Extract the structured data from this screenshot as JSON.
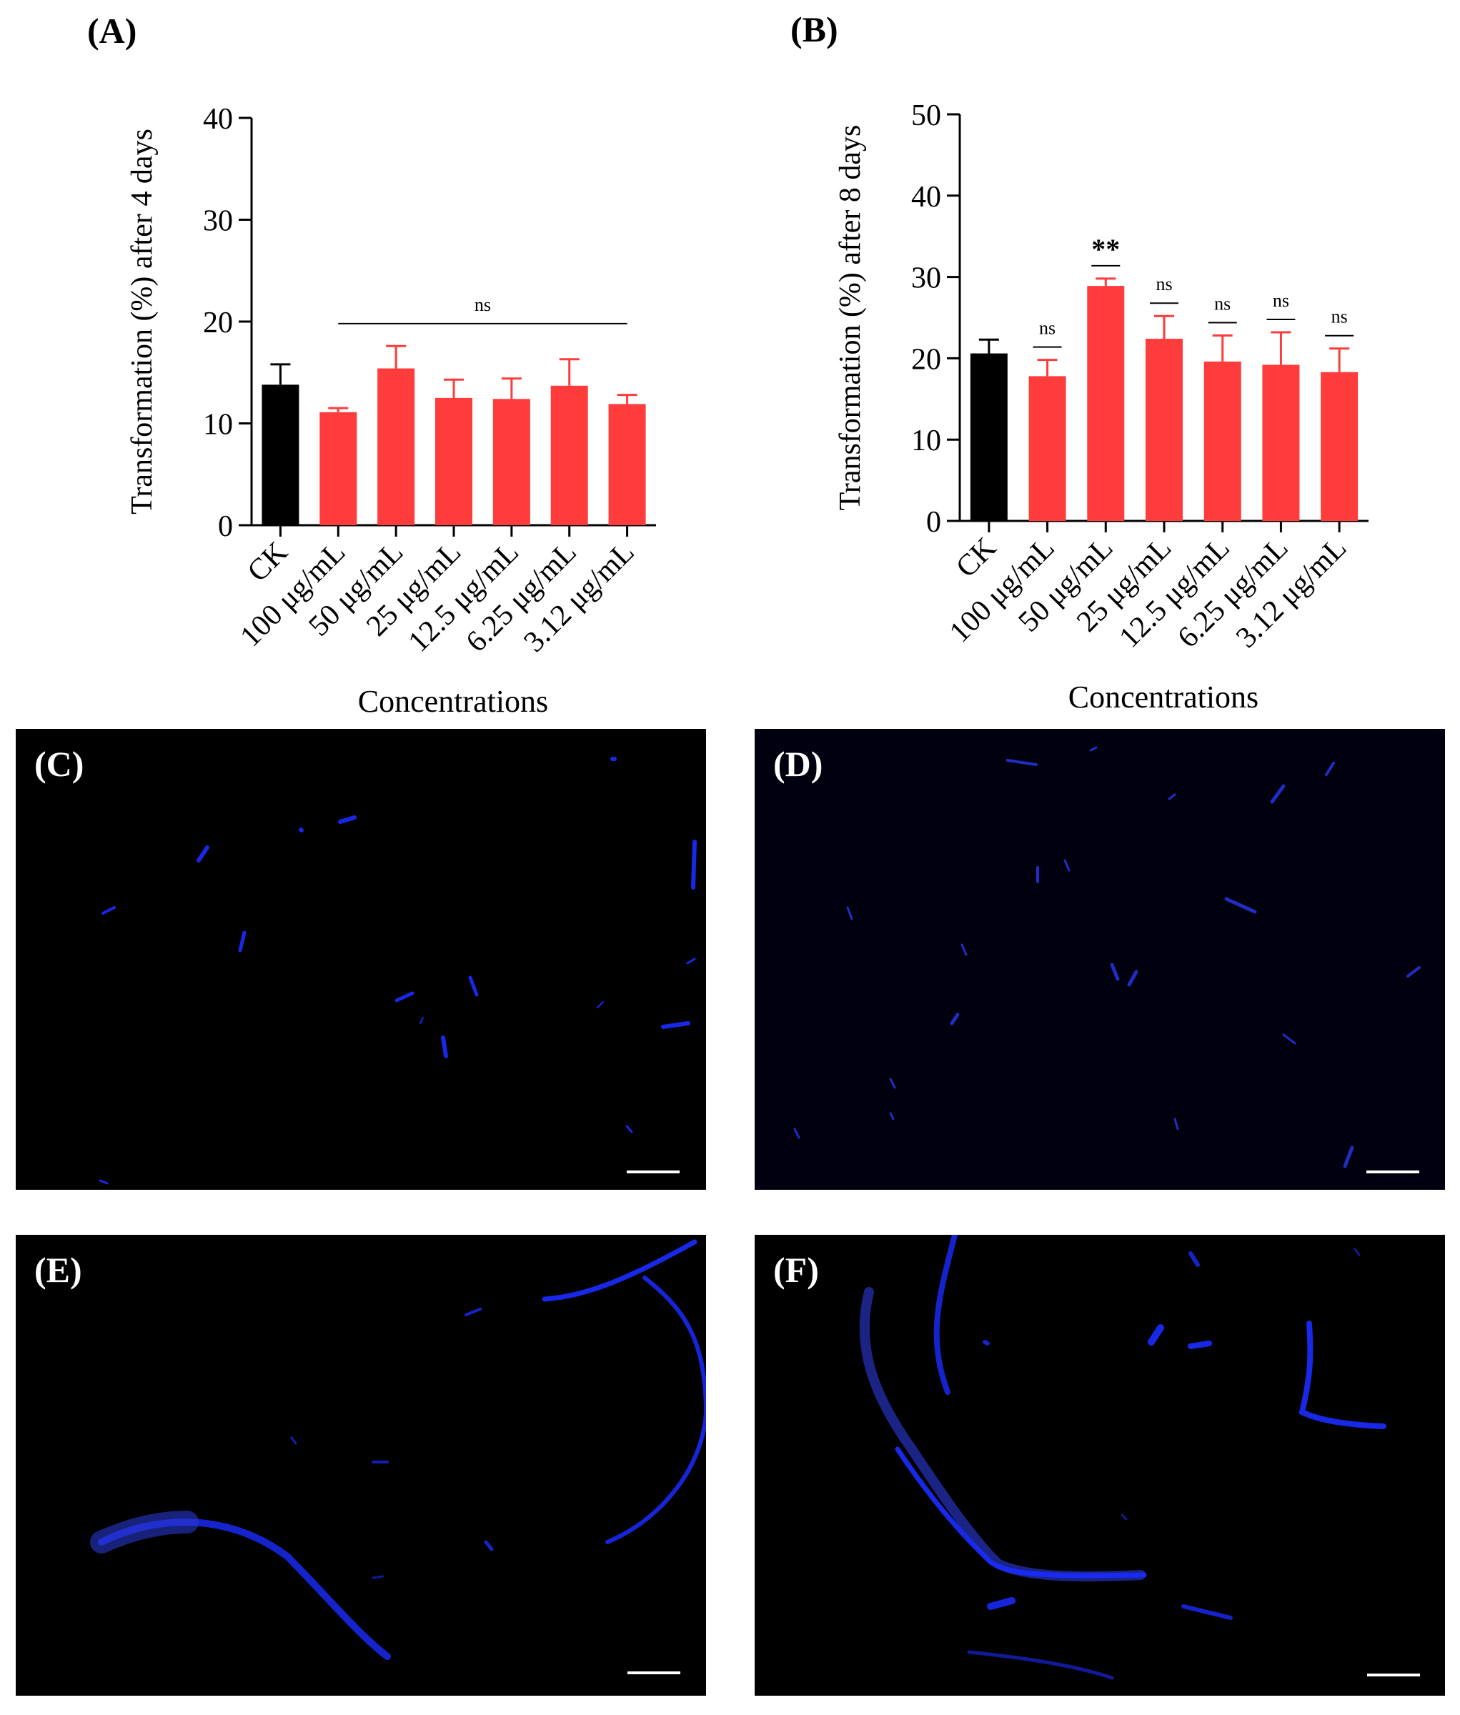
{
  "panels": {
    "a": "(A)",
    "b": "(B)",
    "c": "(C)",
    "d": "(D)",
    "e": "(E)",
    "f": "(F)"
  },
  "colors": {
    "control": "#000000",
    "treatment": "#ff3c3c",
    "micro_bg": "#000000",
    "fluor": "#1a1aff"
  },
  "chart_data": [
    {
      "type": "bar",
      "panel": "(A)",
      "categories": [
        "CK",
        "100 μg/mL",
        "50 μg/mL",
        "25 μg/mL",
        "12.5 μg/mL",
        "6.25 μg/mL",
        "3.12 μg/mL"
      ],
      "values": [
        13.8,
        11.1,
        15.4,
        12.5,
        12.4,
        13.7,
        11.9
      ],
      "errors": [
        2.0,
        0.4,
        2.2,
        1.8,
        2.0,
        2.6,
        0.9
      ],
      "colors": [
        "#000000",
        "#ff3c3c",
        "#ff3c3c",
        "#ff3c3c",
        "#ff3c3c",
        "#ff3c3c",
        "#ff3c3c"
      ],
      "ylabel": "Transformation (%) after 4 days",
      "xlabel": "Concentrations",
      "ylim": [
        0,
        40
      ],
      "yticks": [
        0,
        10,
        20,
        30,
        40
      ],
      "significance": {
        "label": "ns",
        "span": [
          1,
          6
        ],
        "level": 19.8
      }
    },
    {
      "type": "bar",
      "panel": "(B)",
      "categories": [
        "CK",
        "100 μg/mL",
        "50 μg/mL",
        "25 μg/mL",
        "12.5 μg/mL",
        "6.25 μg/mL",
        "3.12 μg/mL"
      ],
      "values": [
        20.6,
        17.8,
        28.9,
        22.4,
        19.6,
        19.2,
        18.3
      ],
      "errors": [
        1.7,
        2.0,
        0.9,
        2.8,
        3.2,
        4.0,
        2.9
      ],
      "colors": [
        "#000000",
        "#ff3c3c",
        "#ff3c3c",
        "#ff3c3c",
        "#ff3c3c",
        "#ff3c3c",
        "#ff3c3c"
      ],
      "ylabel": "Transformation (%) after 8 days",
      "xlabel": "Concentrations",
      "ylim": [
        0,
        50
      ],
      "yticks": [
        0,
        10,
        20,
        30,
        40,
        50
      ],
      "sig_labels": [
        "",
        "ns",
        "**",
        "ns",
        "ns",
        "ns",
        "ns"
      ]
    }
  ]
}
